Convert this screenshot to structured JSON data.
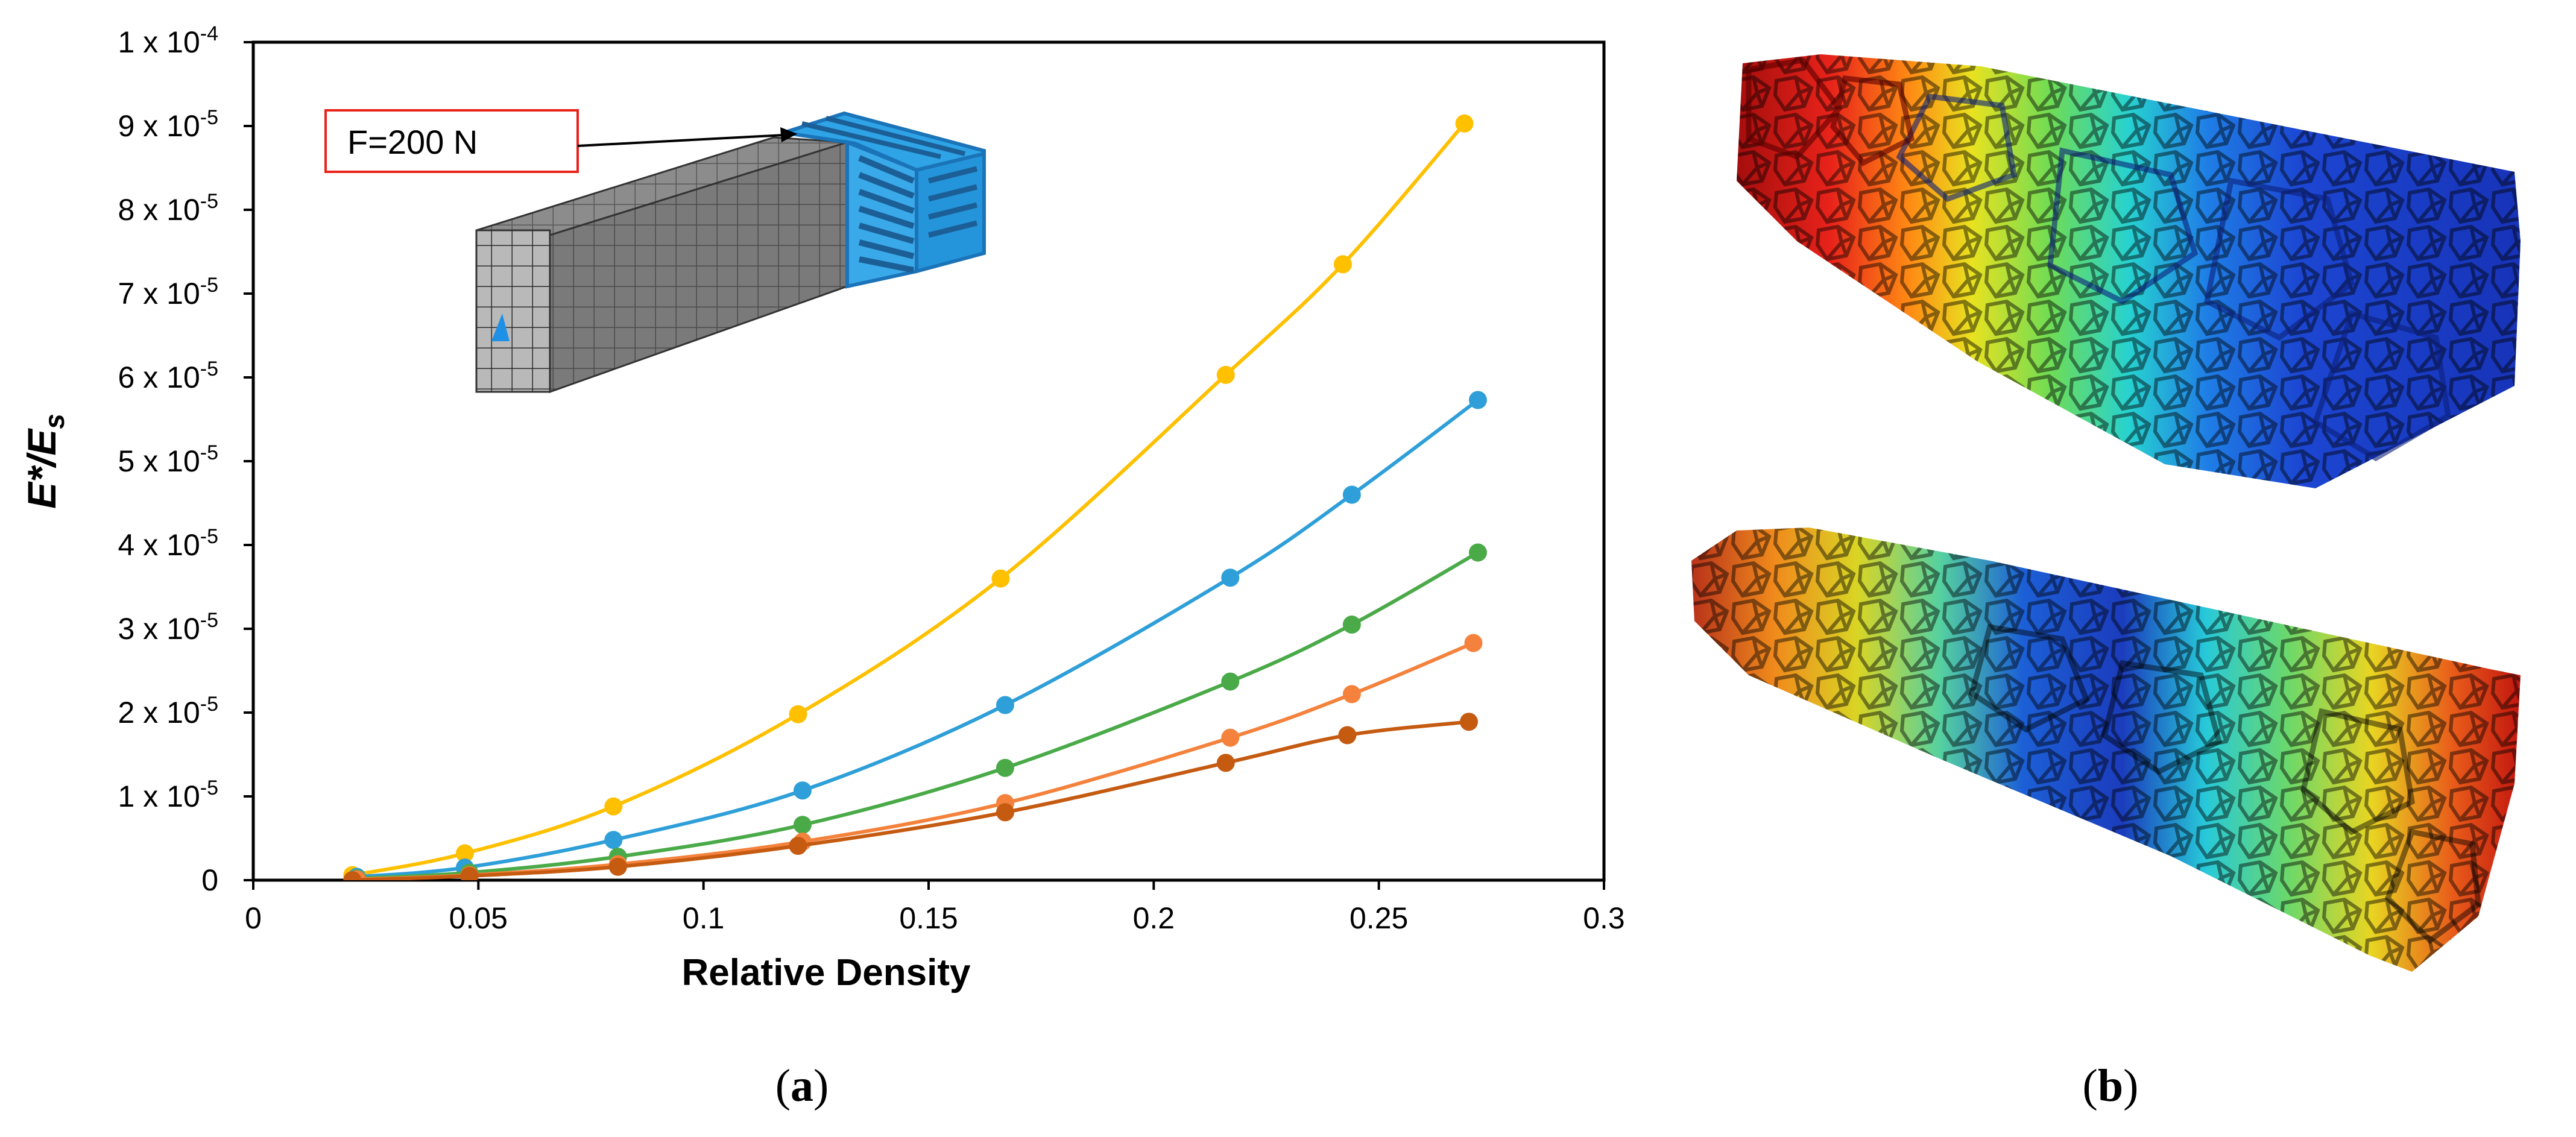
{
  "chart_data": {
    "type": "line",
    "xlabel": "Relative Density",
    "ylabel": {
      "main": "E*/E",
      "sub": "s"
    },
    "xlim": [
      0,
      0.3
    ],
    "ylim": [
      0,
      0.0001
    ],
    "x_ticks": [
      "0",
      "0.05",
      "0.1",
      "0.15",
      "0.2",
      "0.25",
      "0.3"
    ],
    "y_ticks": [
      {
        "value": 0,
        "base": "0",
        "exp": ""
      },
      {
        "value": 1e-05,
        "base": "1 x 10",
        "exp": "-5"
      },
      {
        "value": 2e-05,
        "base": "2 x 10",
        "exp": "-5"
      },
      {
        "value": 3e-05,
        "base": "3 x 10",
        "exp": "-5"
      },
      {
        "value": 4e-05,
        "base": "4 x 10",
        "exp": "-5"
      },
      {
        "value": 5e-05,
        "base": "5 x 10",
        "exp": "-5"
      },
      {
        "value": 6e-05,
        "base": "6 x 10",
        "exp": "-5"
      },
      {
        "value": 7e-05,
        "base": "7 x 10",
        "exp": "-5"
      },
      {
        "value": 8e-05,
        "base": "8 x 10",
        "exp": "-5"
      },
      {
        "value": 9e-05,
        "base": "9 x 10",
        "exp": "-5"
      },
      {
        "value": 0.0001,
        "base": "1 x 10",
        "exp": "-4"
      }
    ],
    "grid": false,
    "series": [
      {
        "color": "#FFC000",
        "points": [
          [
            0.022,
            6e-07
          ],
          [
            0.047,
            3.2e-06
          ],
          [
            0.08,
            8.8e-06
          ],
          [
            0.121,
            1.98e-05
          ],
          [
            0.166,
            3.6e-05
          ],
          [
            0.216,
            6.03e-05
          ],
          [
            0.242,
            7.35e-05
          ],
          [
            0.269,
            9.03e-05
          ]
        ]
      },
      {
        "color": "#2E9FD8",
        "points": [
          [
            0.023,
            4e-07
          ],
          [
            0.047,
            1.5e-06
          ],
          [
            0.08,
            4.8e-06
          ],
          [
            0.122,
            1.07e-05
          ],
          [
            0.167,
            2.09e-05
          ],
          [
            0.217,
            3.61e-05
          ],
          [
            0.244,
            4.6e-05
          ],
          [
            0.272,
            5.73e-05
          ]
        ]
      },
      {
        "color": "#4AAA48",
        "points": [
          [
            0.023,
            2e-07
          ],
          [
            0.048,
            9e-07
          ],
          [
            0.081,
            2.8e-06
          ],
          [
            0.122,
            6.6e-06
          ],
          [
            0.167,
            1.34e-05
          ],
          [
            0.217,
            2.37e-05
          ],
          [
            0.244,
            3.05e-05
          ],
          [
            0.272,
            3.91e-05
          ]
        ]
      },
      {
        "color": "#F4823C",
        "points": [
          [
            0.023,
            1e-07
          ],
          [
            0.048,
            6e-07
          ],
          [
            0.081,
            1.9e-06
          ],
          [
            0.122,
            4.6e-06
          ],
          [
            0.167,
            9.2e-06
          ],
          [
            0.217,
            1.7e-05
          ],
          [
            0.244,
            2.22e-05
          ],
          [
            0.271,
            2.83e-05
          ]
        ]
      },
      {
        "color": "#C55A11",
        "points": [
          [
            0.022,
            0
          ],
          [
            0.048,
            5e-07
          ],
          [
            0.081,
            1.6e-06
          ],
          [
            0.121,
            4.1e-06
          ],
          [
            0.167,
            8.1e-06
          ],
          [
            0.216,
            1.4e-05
          ],
          [
            0.243,
            1.73e-05
          ],
          [
            0.27,
            1.89e-05
          ]
        ]
      }
    ]
  },
  "inset": {
    "callout": "F=200 N"
  },
  "panel_labels": {
    "a": "a",
    "b": "b"
  }
}
